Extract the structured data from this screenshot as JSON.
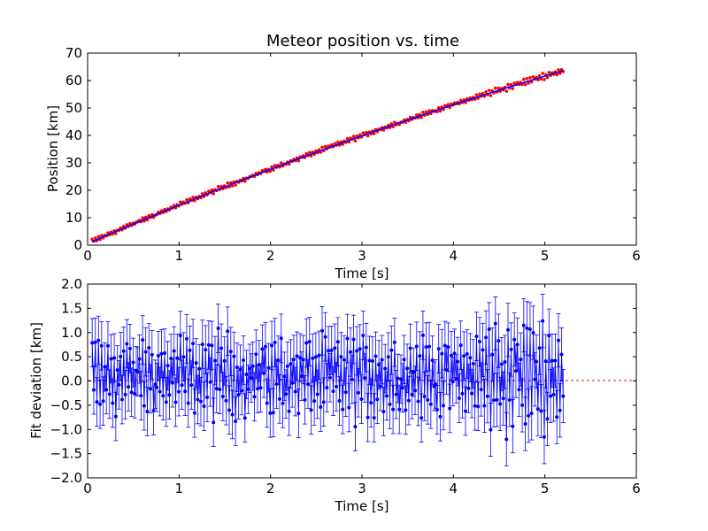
{
  "chart_data": [
    {
      "type": "scatter",
      "title": "Meteor position vs. time",
      "xlabel": "Time [s]",
      "ylabel": "Position [km]",
      "xlim": [
        0,
        6
      ],
      "ylim": [
        0,
        70
      ],
      "xticks": [
        "0",
        "1",
        "2",
        "3",
        "4",
        "5",
        "6"
      ],
      "yticks": [
        "0",
        "10",
        "20",
        "30",
        "40",
        "50",
        "60",
        "70"
      ],
      "grid": false,
      "series": [
        {
          "kind": "measured-points",
          "color": "#ff0000",
          "t_range": [
            0.05,
            5.2
          ],
          "count": 300,
          "error_km": 0.4,
          "values_model": "quadratic fit with noise"
        },
        {
          "kind": "fit-line",
          "color": "#0000ff",
          "coefficients": {
            "c0": 0.6,
            "c1": 14.4,
            "c2": -0.44
          }
        }
      ]
    },
    {
      "type": "scatter",
      "title": "",
      "xlabel": "Time [s]",
      "ylabel": "Fit deviation [km]",
      "xlim": [
        0,
        6
      ],
      "ylim": [
        -2.0,
        2.0
      ],
      "xticks": [
        "0",
        "1",
        "2",
        "3",
        "4",
        "5",
        "6"
      ],
      "yticks": [
        "−2.0",
        "−1.5",
        "−1.0",
        "−0.5",
        "0.0",
        "0.5",
        "1.0",
        "1.5",
        "2.0"
      ],
      "grid": false,
      "zero_line_color": "#ff0000",
      "series": [
        {
          "kind": "residuals-with-errorbars",
          "color": "#0000ff",
          "t_range": [
            0.05,
            5.2
          ],
          "count": 300,
          "error_km": 0.5
        }
      ]
    }
  ]
}
